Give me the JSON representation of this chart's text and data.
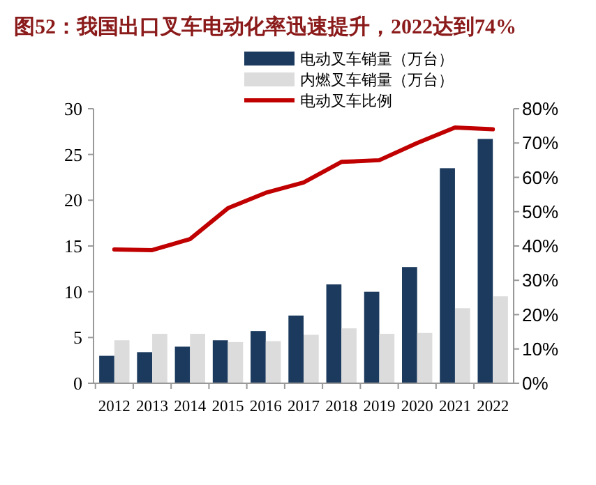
{
  "chart_data": {
    "type": "bar",
    "title": "图52：我国出口叉车电动化率迅速提升，2022达到74%",
    "categories": [
      "2012",
      "2013",
      "2014",
      "2015",
      "2016",
      "2017",
      "2018",
      "2019",
      "2020",
      "2021",
      "2022"
    ],
    "series": [
      {
        "name": "电动叉车销量（万台）",
        "color": "#1b3a5e",
        "values": [
          3.0,
          3.4,
          4.0,
          4.7,
          5.7,
          7.4,
          10.8,
          10.0,
          12.7,
          23.5,
          26.7
        ]
      },
      {
        "name": "内燃叉车销量（万台）",
        "color": "#dcdcdc",
        "values": [
          4.7,
          5.4,
          5.4,
          4.5,
          4.6,
          5.3,
          6.0,
          5.4,
          5.5,
          8.2,
          9.5
        ]
      },
      {
        "name": "电动叉车比例",
        "type": "line",
        "axis": "y2",
        "color": "#c00000",
        "values": [
          39,
          38.8,
          42,
          51,
          55.5,
          58.5,
          64.5,
          65,
          70,
          74.5,
          74
        ]
      }
    ],
    "ylim": [
      0,
      30
    ],
    "yticks": [
      0,
      5,
      10,
      15,
      20,
      25,
      30
    ],
    "y2lim": [
      0,
      80
    ],
    "y2ticks": [
      {
        "value": 0,
        "label": "0%"
      },
      {
        "value": 10,
        "label": "10%"
      },
      {
        "value": 20,
        "label": "20%"
      },
      {
        "value": 30,
        "label": "30%"
      },
      {
        "value": 40,
        "label": "40%"
      },
      {
        "value": 50,
        "label": "50%"
      },
      {
        "value": 60,
        "label": "60%"
      },
      {
        "value": 70,
        "label": "70%"
      },
      {
        "value": 80,
        "label": "80%"
      }
    ],
    "legend": "top right"
  }
}
